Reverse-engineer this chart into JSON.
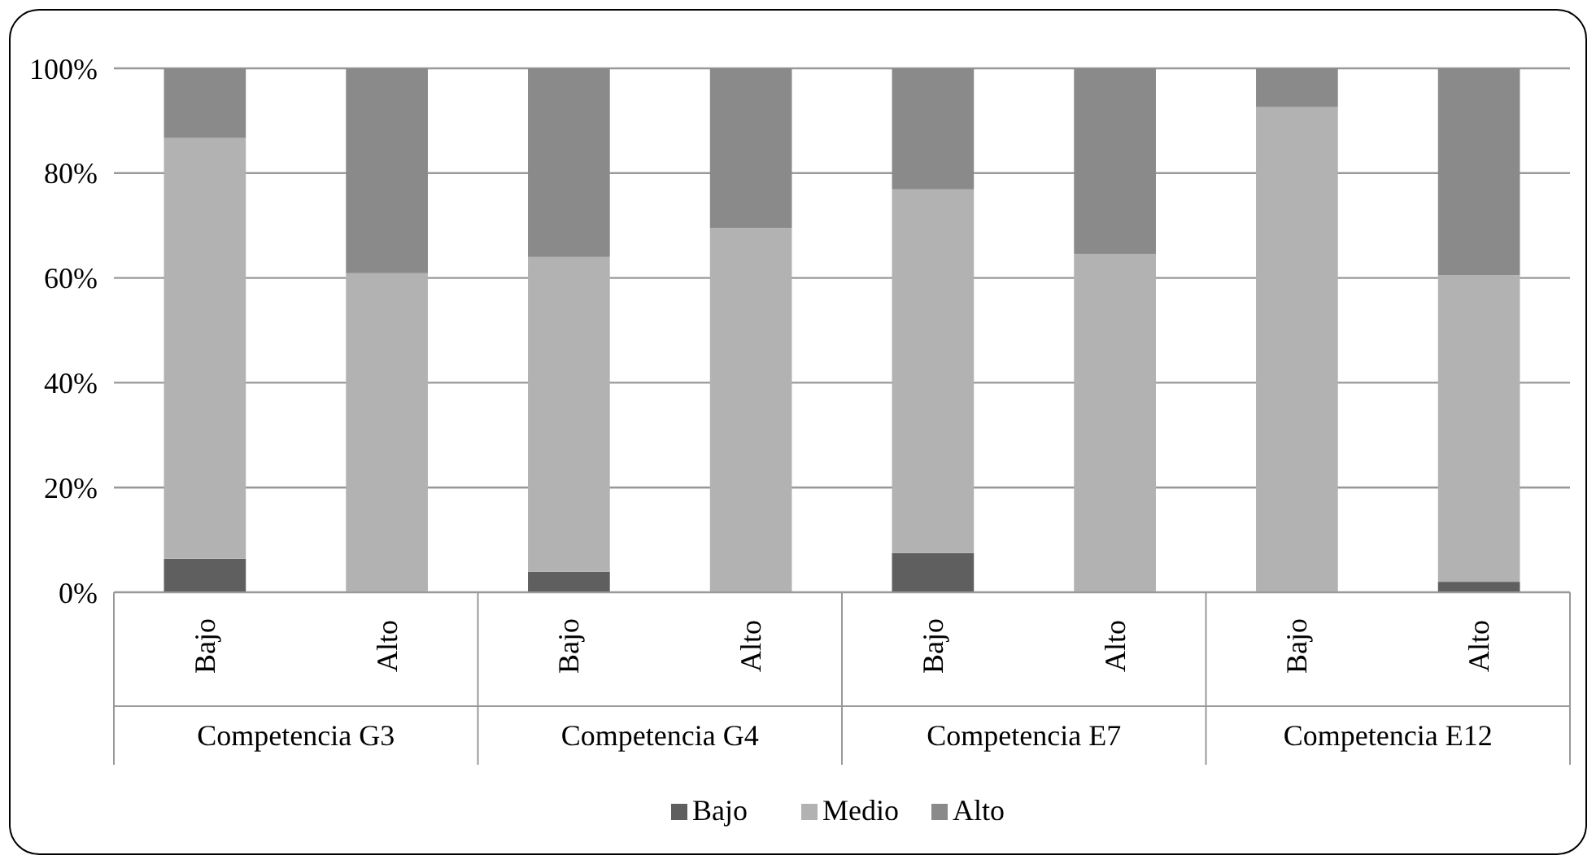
{
  "chart_data": {
    "type": "bar",
    "stacked": true,
    "categories": [
      "Bajo",
      "Alto",
      "Bajo",
      "Alto",
      "Bajo",
      "Alto",
      "Bajo",
      "Alto"
    ],
    "annotations": [
      "Competencia G3",
      "Competencia G4",
      "Competencia E7",
      "Competencia E12"
    ],
    "series": [
      {
        "name": "Bajo",
        "color": "#5f5f5f",
        "values": [
          6.4,
          0,
          3.9,
          0,
          7.5,
          0,
          0,
          2.0
        ]
      },
      {
        "name": "Medio",
        "color": "#b2b2b2",
        "values": [
          80.3,
          60.9,
          60.1,
          69.5,
          69.4,
          64.6,
          92.6,
          58.5
        ]
      },
      {
        "name": "Alto",
        "color": "#8a8a8a",
        "values": [
          13.3,
          39.1,
          36.0,
          30.5,
          23.1,
          35.4,
          7.4,
          39.5
        ]
      }
    ],
    "ylim": [
      0,
      100
    ],
    "yticks": [
      {
        "value": 0,
        "label": "0%"
      },
      {
        "value": 20,
        "label": "20%"
      },
      {
        "value": 40,
        "label": "40%"
      },
      {
        "value": 60,
        "label": "60%"
      },
      {
        "value": 80,
        "label": "80%"
      },
      {
        "value": 100,
        "label": "100%"
      }
    ],
    "grid": "y",
    "legend": "bottom"
  }
}
